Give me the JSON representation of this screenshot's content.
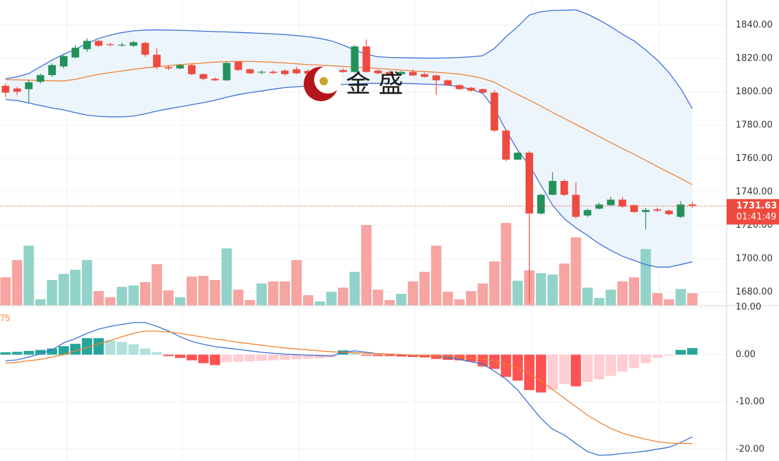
{
  "chart_data": [
    {
      "type": "candlestick",
      "open": [
        1803.6,
        1802.0,
        1801.6,
        1806.0,
        1810.0,
        1815.2,
        1820.6,
        1825.5,
        1830.5,
        1828.5,
        1827.8,
        1827.6,
        1829.3,
        1822.2,
        1814.8,
        1814.0,
        1816.0,
        1810.6,
        1807.8,
        1806.9,
        1818.1,
        1813.5,
        1811.5,
        1812.0,
        1812.7,
        1813.5,
        1812.5,
        1810.8,
        1811.1,
        1813.1,
        1811.9,
        1827.2,
        1812.7,
        1811.9,
        1810.6,
        1811.9,
        1810.6,
        1809.8,
        1806.9,
        1804.0,
        1802.4,
        1801.6,
        1799.5,
        1776.8,
        1759.4,
        1763.5,
        1727.1,
        1738.3,
        1746.6,
        1738.3,
        1725.9,
        1730.0,
        1732.1,
        1735.4,
        1732.1,
        1728.0,
        1729.6,
        1728.8,
        1725.1,
        1732.5
      ],
      "high": [
        1805,
        1803,
        1807,
        1811,
        1817,
        1822,
        1828,
        1832,
        1831,
        1829.5,
        1829.5,
        1830.5,
        1830,
        1826,
        1815.5,
        1816.5,
        1816.5,
        1811,
        1808.5,
        1818,
        1818.5,
        1814,
        1813,
        1813,
        1813.5,
        1815,
        1813.5,
        1813,
        1814,
        1814,
        1828,
        1831.3,
        1813.5,
        1812.5,
        1812.5,
        1813.5,
        1811.5,
        1810.5,
        1807.5,
        1804.5,
        1803,
        1802,
        1801,
        1777.5,
        1764,
        1764.5,
        1739,
        1751.9,
        1747.5,
        1745.7,
        1730,
        1733.5,
        1737,
        1737,
        1732.5,
        1730.5,
        1730.5,
        1729.5,
        1734.5,
        1734
      ],
      "low": [
        1797,
        1798,
        1793.3,
        1805,
        1809,
        1814,
        1820,
        1824,
        1827,
        1827,
        1827,
        1827,
        1821,
        1813.5,
        1813,
        1813.5,
        1810,
        1807,
        1806.5,
        1806.5,
        1812.5,
        1810.5,
        1810.5,
        1810.5,
        1809.5,
        1810.5,
        1810,
        1810,
        1810.5,
        1811.5,
        1811.5,
        1811.5,
        1810.5,
        1810,
        1810,
        1809.5,
        1808.5,
        1798.2,
        1803.5,
        1801,
        1800,
        1799,
        1776,
        1758.5,
        1759,
        1673.4,
        1726.5,
        1738,
        1737.5,
        1724,
        1725,
        1729.5,
        1731.5,
        1730.5,
        1727.5,
        1717.6,
        1728,
        1726,
        1724.5,
        1730.5
      ],
      "close": [
        1799.5,
        1800.0,
        1805.7,
        1810.0,
        1816.0,
        1821.4,
        1826.4,
        1830.5,
        1827.6,
        1828.0,
        1828.2,
        1829.7,
        1822.2,
        1814.8,
        1814.0,
        1816.0,
        1810.6,
        1807.8,
        1806.9,
        1817.3,
        1813.1,
        1811.1,
        1812.0,
        1811.3,
        1810.6,
        1811.1,
        1810.8,
        1812.3,
        1812.7,
        1811.9,
        1827.2,
        1811.9,
        1811.1,
        1810.6,
        1811.9,
        1809.8,
        1809.0,
        1806.9,
        1804.0,
        1801.6,
        1800.7,
        1799.5,
        1776.8,
        1759.4,
        1763.5,
        1727.1,
        1738.3,
        1746.6,
        1738.3,
        1725.1,
        1729.2,
        1732.5,
        1735.4,
        1731.3,
        1728.0,
        1729.2,
        1728.8,
        1726.7,
        1732.5,
        1731.63
      ],
      "up_color": "#22915a",
      "down_color": "#ef4a3f",
      "bands": [
        {
          "color": "#3a6fd8",
          "values": [
            1807.8,
            1809,
            1811,
            1815,
            1819,
            1822.5,
            1825.5,
            1829,
            1832,
            1834,
            1835.5,
            1836.5,
            1837,
            1837.1,
            1837,
            1836.8,
            1836.6,
            1836.3,
            1836.1,
            1835.9,
            1835.6,
            1835.3,
            1835,
            1834.7,
            1834.3,
            1833.7,
            1833,
            1832,
            1830.5,
            1828,
            1825,
            1822.5,
            1821,
            1820.6,
            1820.4,
            1820.3,
            1820.2,
            1820.2,
            1820.3,
            1820.6,
            1821,
            1821.6,
            1826,
            1833,
            1839,
            1846,
            1848,
            1848.7,
            1848.9,
            1849.1,
            1846.5,
            1843,
            1839,
            1834.5,
            1830.5,
            1825,
            1819,
            1811.5,
            1802,
            1790
          ]
        },
        {
          "color": "#f0802e",
          "values": [
            1807.3,
            1807.2,
            1807,
            1806.8,
            1806.6,
            1806.5,
            1807.5,
            1809,
            1810.5,
            1811.5,
            1812.5,
            1813.5,
            1814.3,
            1815,
            1815.7,
            1816.3,
            1816.8,
            1817.3,
            1817.8,
            1818.1,
            1818.2,
            1818.2,
            1818,
            1817.7,
            1817.3,
            1816.8,
            1816.3,
            1816,
            1815.6,
            1815.2,
            1814.8,
            1814.4,
            1814,
            1813.5,
            1813,
            1812.5,
            1812.1,
            1811.7,
            1811.2,
            1810.6,
            1809.5,
            1808,
            1805.7,
            1802,
            1798.4,
            1795,
            1791.4,
            1787.7,
            1784.1,
            1780.5,
            1776.9,
            1773.2,
            1769.6,
            1766,
            1762.6,
            1758.9,
            1755.3,
            1751.7,
            1748.1,
            1744.4
          ]
        },
        {
          "color": "#3a6fd8",
          "values": [
            1795.4,
            1794.8,
            1793.3,
            1791.8,
            1790.3,
            1789.2,
            1787.5,
            1786,
            1785.3,
            1785,
            1785,
            1785.5,
            1786.8,
            1788.5,
            1789.8,
            1791,
            1792.3,
            1793.5,
            1795,
            1796.8,
            1798.3,
            1799.5,
            1800.5,
            1801.6,
            1802.5,
            1803,
            1803.5,
            1803.7,
            1804,
            1804.4,
            1804.8,
            1805,
            1805,
            1805,
            1805,
            1804.9,
            1804.6,
            1804.4,
            1804,
            1803,
            1801.5,
            1799,
            1790,
            1777,
            1765,
            1756,
            1744,
            1732,
            1724,
            1718.5,
            1714,
            1709,
            1705,
            1701.5,
            1699,
            1696.5,
            1695,
            1695,
            1696.5,
            1698.2
          ]
        }
      ],
      "band_fill": "#edf5fc",
      "volume": {
        "values": [
          41,
          66,
          87,
          9,
          37,
          46,
          52,
          66,
          21,
          12,
          27,
          29,
          34,
          60,
          22,
          12,
          42,
          43,
          37,
          83,
          23,
          8,
          32,
          35,
          35,
          66,
          15,
          6,
          20,
          26,
          49,
          117,
          23,
          8,
          17,
          35,
          49,
          87,
          20,
          9,
          21,
          32,
          64,
          120,
          36,
          51,
          47,
          45,
          61,
          99,
          26,
          11,
          23,
          35,
          41,
          82,
          18,
          9,
          24,
          18
        ],
        "ylim": [
          0,
          444
        ],
        "up_color": "#92d3c9",
        "down_color": "#f6a5a2"
      },
      "ylim": [
        1672,
        1855
      ],
      "yticks": [
        {
          "value": 1840,
          "label": "1840.00"
        },
        {
          "value": 1820,
          "label": "1820.00"
        },
        {
          "value": 1800,
          "label": "1800.00"
        },
        {
          "value": 1780,
          "label": "1780.00"
        },
        {
          "value": 1760,
          "label": "1760.00"
        },
        {
          "value": 1740,
          "label": "1740.00"
        },
        {
          "value": 1720,
          "label": "1720.00"
        },
        {
          "value": 1700,
          "label": "1700.00"
        },
        {
          "value": 1680,
          "label": "1680.00"
        }
      ],
      "grid": true,
      "last_price": 1731.63,
      "countdown": "01:41:49",
      "logo_text": "金 盛"
    },
    {
      "type": "macd",
      "label": "75",
      "series": [
        {
          "color": "#3a6fd8",
          "values": [
            -1.3,
            -1.1,
            -0.5,
            0.2,
            1,
            2.5,
            3.4,
            4.5,
            5.4,
            6,
            6.4,
            6.8,
            6.8,
            6,
            5,
            3.8,
            2.8,
            2.2,
            1.7,
            1.4,
            1.1,
            0.8,
            0.5,
            0.3,
            0.1,
            0,
            -0.1,
            -0.2,
            -0.3,
            0.5,
            0.8,
            0.5,
            0.2,
            0.1,
            0,
            -0.1,
            -0.2,
            -0.3,
            -0.6,
            -1,
            -1.5,
            -2,
            -3.5,
            -5.2,
            -7.5,
            -10.5,
            -13.5,
            -15.8,
            -17,
            -18.8,
            -20.5,
            -21.3,
            -21.2,
            -20.9,
            -20.7,
            -20.4,
            -20,
            -19.6,
            -18.6,
            -17.4
          ]
        },
        {
          "color": "#f0802e",
          "values": [
            -1.8,
            -1.6,
            -1.3,
            -1,
            -0.5,
            0,
            0.8,
            1.5,
            2.3,
            3,
            3.8,
            4.5,
            5,
            5,
            4.8,
            4.5,
            4.1,
            3.7,
            3.3,
            3,
            2.6,
            2.3,
            2,
            1.7,
            1.4,
            1.2,
            1,
            0.8,
            0.6,
            0.5,
            0.4,
            0.3,
            0.2,
            0.1,
            0,
            -0.1,
            -0.2,
            -0.3,
            -0.4,
            -0.5,
            -0.7,
            -0.9,
            -1.3,
            -2,
            -2.8,
            -4,
            -5.6,
            -7.4,
            -9.2,
            -11,
            -12.8,
            -14.3,
            -15.6,
            -16.6,
            -17.3,
            -17.9,
            -18.4,
            -18.7,
            -18.8,
            -18.8
          ]
        }
      ],
      "histogram": {
        "values": [
          0.5,
          0.6,
          0.8,
          1,
          1.3,
          1.8,
          2.3,
          3.5,
          3.5,
          3,
          2.7,
          2.2,
          1.3,
          0.5,
          -0.3,
          -0.7,
          -1.2,
          -1.8,
          -2.2,
          -1.6,
          -1.5,
          -1.4,
          -1.3,
          -1.2,
          -1.1,
          -1,
          -0.9,
          -0.8,
          -0.6,
          0.9,
          0.3,
          -0.2,
          -0.3,
          -0.3,
          -0.4,
          -0.5,
          -0.6,
          -0.9,
          -1.1,
          -1.2,
          -1.5,
          -2.5,
          -3,
          -4.7,
          -5.5,
          -7.5,
          -8,
          -7.4,
          -6.2,
          -6.7,
          -5.8,
          -5.2,
          -4.5,
          -3.6,
          -2.8,
          -1.8,
          -0.7,
          -0.2,
          1,
          1.4
        ],
        "pos_rising": "#26a69a",
        "pos_falling": "#b2dfdb",
        "neg_falling": "#ff5252",
        "neg_rising": "#ffcdd2"
      },
      "ylim": [
        -22.5,
        10.4
      ],
      "yticks": [
        {
          "value": 10,
          "label": "10.00"
        },
        {
          "value": 0,
          "label": "0.00"
        },
        {
          "value": -10,
          "label": "-10.00"
        },
        {
          "value": -20,
          "label": "-20.00"
        }
      ],
      "grid": true
    }
  ]
}
